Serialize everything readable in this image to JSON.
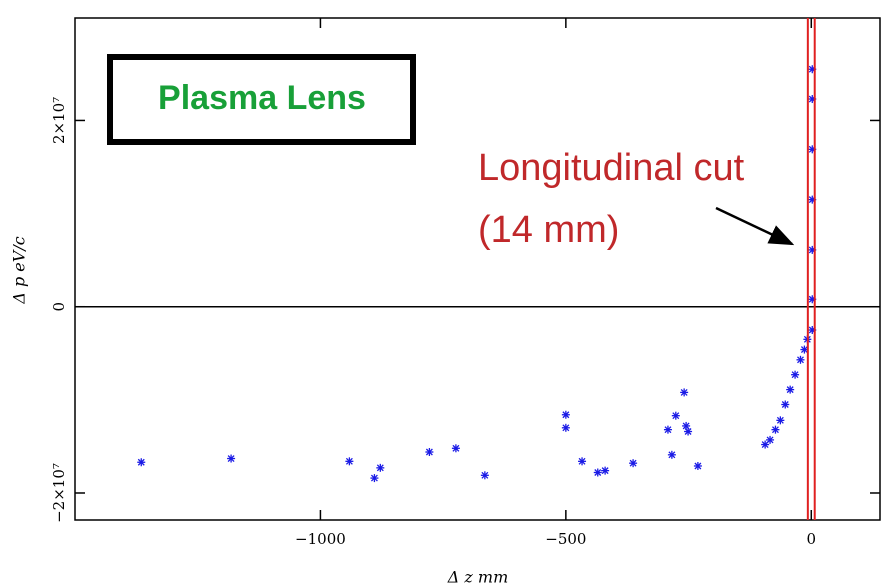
{
  "chart_data": {
    "type": "scatter",
    "box_label": "Plasma Lens",
    "annotation": [
      "Longitudinal cut",
      "(14 mm)"
    ],
    "x_label": "Δ z mm",
    "y_label": "Δ p eV/c",
    "xlim": [
      -1500,
      140
    ],
    "ylim": [
      -22900000,
      31000000
    ],
    "xticks": [
      {
        "value": -1000,
        "label": "−1000"
      },
      {
        "value": -500,
        "label": "−500"
      },
      0
    ],
    "yticks": [
      {
        "value": 20000000,
        "label": "2×10⁷"
      },
      0,
      {
        "value": -20000000,
        "label": "−2×10⁷"
      }
    ],
    "zero_line": true,
    "cut_lines": [
      -7,
      7
    ],
    "cut_color": "#e02020",
    "color": "#1a1ae6",
    "x": [
      -1365,
      -1182,
      -941,
      -890,
      -878,
      -778,
      -724,
      -665,
      -500,
      -500,
      -467,
      -435,
      -420,
      -363,
      -292,
      -284,
      -276,
      -259,
      -255,
      -251,
      -231,
      -94,
      -84,
      -73,
      -63,
      -53,
      -43,
      -33,
      -22,
      -14,
      -8,
      2,
      2,
      2,
      2,
      2,
      2,
      2
    ],
    "y": [
      -16700000,
      -16300000,
      -16600000,
      -18400000,
      -17300000,
      -15600000,
      -15200000,
      -18100000,
      -11600000,
      -13000000,
      -16600000,
      -17800000,
      -17600000,
      -16800000,
      -13200000,
      -15900000,
      -11700000,
      -9200000,
      -12800000,
      -13400000,
      -17100000,
      -14800000,
      -14300000,
      -13200000,
      -12200000,
      -10500000,
      -8900000,
      -7300000,
      -5700000,
      -4600000,
      -3500000,
      -2500000,
      800000,
      6100000,
      11500000,
      16900000,
      22300000,
      25500000
    ]
  }
}
